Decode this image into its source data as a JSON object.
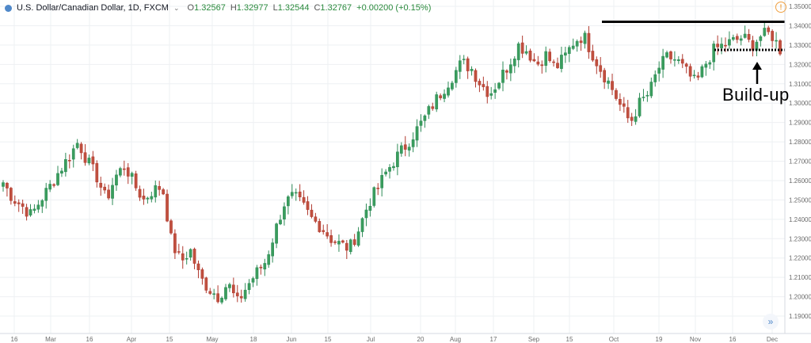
{
  "header": {
    "symbol": "U.S. Dollar/Canadian Dollar, 1D, FXCM",
    "ohlc": [
      {
        "label": "O",
        "value": "1.32567"
      },
      {
        "label": "H",
        "value": "1.32977"
      },
      {
        "label": "L",
        "value": "1.32544"
      },
      {
        "label": "C",
        "value": "1.32767"
      }
    ],
    "change": "+0.00200 (+0.15%)",
    "warn": "!",
    "chevron": "⌄"
  },
  "annotation": "Build-up",
  "scroll_icon": "»",
  "colors": {
    "up": "#2e8b57",
    "up_fill": "#3a9d5d",
    "down": "#b0392e",
    "down_fill": "#c0503f",
    "grid": "#eef0f3",
    "axis_text": "#6a6a6a",
    "resistance": "#000000"
  },
  "chart_data": {
    "type": "candlestick",
    "ylim": [
      1.185,
      1.355
    ],
    "y_ticks": [
      "1.19000",
      "1.20000",
      "1.21000",
      "1.22000",
      "1.23000",
      "1.24000",
      "1.25000",
      "1.26000",
      "1.27000",
      "1.28000",
      "1.29000",
      "1.30000",
      "1.31000",
      "1.32000",
      "1.33000",
      "1.34000",
      "1.35000"
    ],
    "x_ticks": [
      "16",
      "Mar",
      "16",
      "Apr",
      "15",
      "May",
      "18",
      "Jun",
      "15",
      "Jul",
      "20",
      "Aug",
      "17",
      "Sep",
      "15",
      "Oct",
      "19",
      "Nov",
      "16",
      "Dec"
    ],
    "key_close_path": [
      1.259,
      1.251,
      1.247,
      1.242,
      1.25,
      1.257,
      1.265,
      1.272,
      1.28,
      1.27,
      1.262,
      1.25,
      1.262,
      1.268,
      1.258,
      1.25,
      1.255,
      1.257,
      1.228,
      1.218,
      1.224,
      1.21,
      1.204,
      1.2,
      1.207,
      1.197,
      1.205,
      1.212,
      1.218,
      1.233,
      1.248,
      1.252,
      1.247,
      1.24,
      1.236,
      1.23,
      1.227,
      1.225,
      1.235,
      1.248,
      1.256,
      1.265,
      1.272,
      1.278,
      1.285,
      1.292,
      1.3,
      1.307,
      1.314,
      1.321,
      1.318,
      1.31,
      1.305,
      1.312,
      1.32,
      1.33,
      1.327,
      1.32,
      1.325,
      1.318,
      1.324,
      1.332,
      1.335,
      1.325,
      1.316,
      1.308,
      1.298,
      1.29,
      1.3,
      1.305,
      1.318,
      1.324,
      1.322,
      1.316,
      1.31,
      1.32,
      1.328,
      1.33,
      1.332,
      1.334,
      1.33,
      1.335,
      1.336,
      1.3277
    ],
    "levels": [
      {
        "value": 1.342,
        "style": "solid"
      },
      {
        "value": 1.3275,
        "style": "dotted"
      }
    ]
  }
}
